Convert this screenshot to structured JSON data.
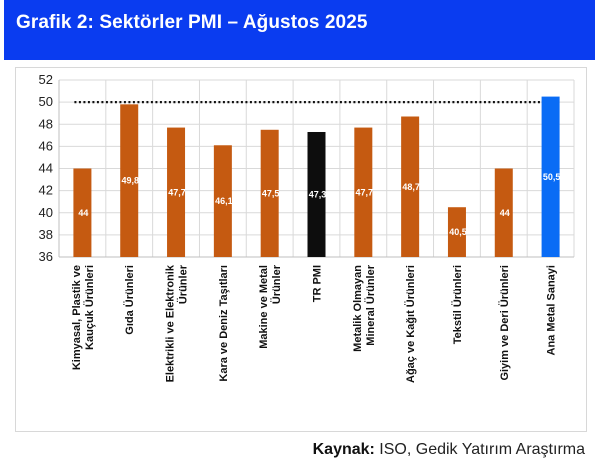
{
  "header": {
    "title": "Grafik 2: Sektörler PMI – Ağustos 2025"
  },
  "source": {
    "label": "Kaynak:",
    "text": " ISO, Gedik Yatırım Araştırma"
  },
  "colors": {
    "header_bg": "#0a3cf0",
    "bar_sector": "#c55a11",
    "bar_tr": "#0d0d0d",
    "bar_metal": "#0a6cf5",
    "reference_line": "#111111"
  },
  "chart_data": {
    "type": "bar",
    "categories": [
      "Kimyasal, Plastik ve Kauçuk Ürünleri",
      "Gıda Ürünleri",
      "Elektrikli ve Elektronik Ürünler",
      "Kara ve Deniz Taşıtları",
      "Makine ve Metal Ürünler",
      "TR PMI",
      "Metalik Olmayan Mineral Ürünler",
      "Ağaç ve Kağıt Ürünleri",
      "Tekstil Ürünleri",
      "Giyim ve Deri Ürünleri",
      "Ana Metal Sanayi"
    ],
    "category_lines": [
      [
        "Kimyasal, Plastik ve",
        "Kauçuk Ürünleri"
      ],
      [
        "Gıda Ürünleri"
      ],
      [
        "Elektrikli ve Elektronik",
        "Ürünler"
      ],
      [
        "Kara ve Deniz Taşıtları"
      ],
      [
        "Makine ve Metal",
        "Ürünler"
      ],
      [
        "TR PMI"
      ],
      [
        "Metalik Olmayan",
        "Mineral Ürünler"
      ],
      [
        "Ağaç ve Kağıt Ürünleri"
      ],
      [
        "Tekstil Ürünleri"
      ],
      [
        "Giyim ve Deri Ürünleri"
      ],
      [
        "Ana Metal Sanayi"
      ]
    ],
    "values": [
      44,
      49.8,
      47.7,
      46.1,
      47.5,
      47.3,
      47.7,
      48.7,
      40.5,
      44,
      50.5
    ],
    "data_labels": [
      "44",
      "49,8",
      "47,7",
      "46,1",
      "47,5",
      "47,3",
      "47,7",
      "48,7",
      "40,5",
      "44",
      "50,5"
    ],
    "bar_colors": [
      "#c55a11",
      "#c55a11",
      "#c55a11",
      "#c55a11",
      "#c55a11",
      "#0d0d0d",
      "#c55a11",
      "#c55a11",
      "#c55a11",
      "#c55a11",
      "#0a6cf5"
    ],
    "ylim": [
      36,
      52
    ],
    "yticks": [
      36,
      38,
      40,
      42,
      44,
      46,
      48,
      50,
      52
    ],
    "reference_line": 50,
    "grid": true
  }
}
